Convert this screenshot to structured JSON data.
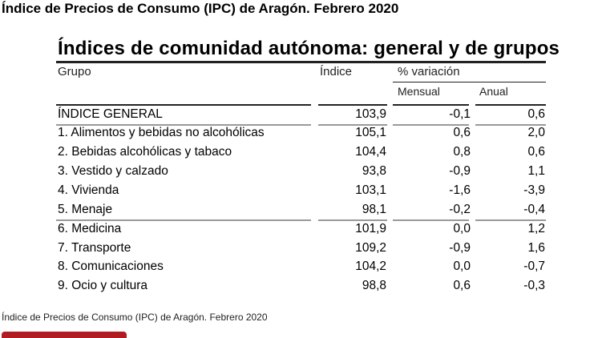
{
  "page_title": "Índice de Precios de Consumo (IPC) de Aragón. Febrero 2020",
  "table": {
    "title": "Índices de comunidad autónoma: general y de grupos",
    "headers": {
      "grupo": "Grupo",
      "indice": "Índice",
      "variacion": "% variación",
      "mensual": "Mensual",
      "anual": "Anual"
    },
    "rows": [
      {
        "grupo": "ÍNDICE GENERAL",
        "indice": "103,9",
        "mensual": "-0,1",
        "anual": "0,6"
      },
      {
        "grupo": "1. Alimentos y bebidas no alcohólicas",
        "indice": "105,1",
        "mensual": "0,6",
        "anual": "2,0"
      },
      {
        "grupo": "2. Bebidas alcohólicas y tabaco",
        "indice": "104,4",
        "mensual": "0,8",
        "anual": "0,6"
      },
      {
        "grupo": "3. Vestido y calzado",
        "indice": "93,8",
        "mensual": "-0,9",
        "anual": "1,1"
      },
      {
        "grupo": "4. Vivienda",
        "indice": "103,1",
        "mensual": "-1,6",
        "anual": "-3,9"
      },
      {
        "grupo": "5. Menaje",
        "indice": "98,1",
        "mensual": "-0,2",
        "anual": "-0,4"
      },
      {
        "grupo": "6. Medicina",
        "indice": "101,9",
        "mensual": "0,0",
        "anual": "1,2"
      },
      {
        "grupo": "7. Transporte",
        "indice": "109,2",
        "mensual": "-0,9",
        "anual": "1,6"
      },
      {
        "grupo": "8. Comunicaciones",
        "indice": "104,2",
        "mensual": "0,0",
        "anual": "-0,7"
      },
      {
        "grupo": "9. Ocio y cultura",
        "indice": "98,8",
        "mensual": "0,6",
        "anual": "-0,3"
      }
    ]
  },
  "caption": "Índice de Precios de Consumo (IPC) de Aragón. Febrero 2020"
}
